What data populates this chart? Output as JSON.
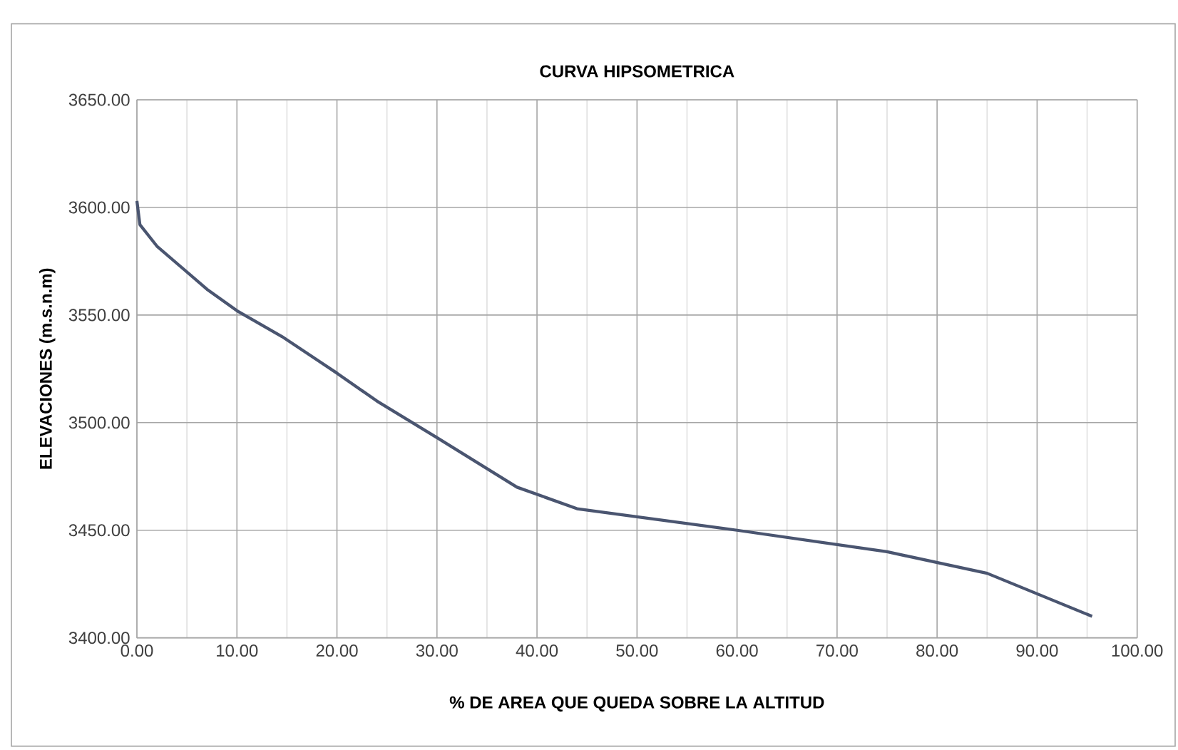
{
  "chart_data": {
    "type": "line",
    "title": "CURVA HIPSOMETRICA",
    "xlabel": "% DE AREA QUE QUEDA SOBRE LA ALTITUD",
    "ylabel": "ELEVACIONES (m.s.n.m)",
    "x": [
      0,
      0.3,
      2,
      7,
      10,
      14.5,
      20,
      24,
      30,
      38,
      44,
      60,
      75,
      85,
      95.5
    ],
    "series": [
      {
        "color": "#4a5570",
        "values": [
          3603,
          3592,
          3582,
          3562,
          3552,
          3540,
          3523,
          3510,
          3493,
          3470,
          3460,
          3450,
          3440,
          3430,
          3410
        ]
      }
    ],
    "xlim": [
      0,
      100
    ],
    "ylim": [
      3400,
      3650
    ],
    "xticks": [
      {
        "value": 0,
        "label": "0.00"
      },
      {
        "value": 10,
        "label": "10.00"
      },
      {
        "value": 20,
        "label": "20.00"
      },
      {
        "value": 30,
        "label": "30.00"
      },
      {
        "value": 40,
        "label": "40.00"
      },
      {
        "value": 50,
        "label": "50.00"
      },
      {
        "value": 60,
        "label": "60.00"
      },
      {
        "value": 70,
        "label": "70.00"
      },
      {
        "value": 80,
        "label": "80.00"
      },
      {
        "value": 90,
        "label": "90.00"
      },
      {
        "value": 100,
        "label": "100.00"
      }
    ],
    "yticks": [
      {
        "value": 3400,
        "label": "3400.00"
      },
      {
        "value": 3450,
        "label": "3450.00"
      },
      {
        "value": 3500,
        "label": "3500.00"
      },
      {
        "value": 3550,
        "label": "3550.00"
      },
      {
        "value": 3600,
        "label": "3600.00"
      },
      {
        "value": 3650,
        "label": "3650.00"
      }
    ],
    "grid": true,
    "marker": "none",
    "line_style": "solid"
  }
}
